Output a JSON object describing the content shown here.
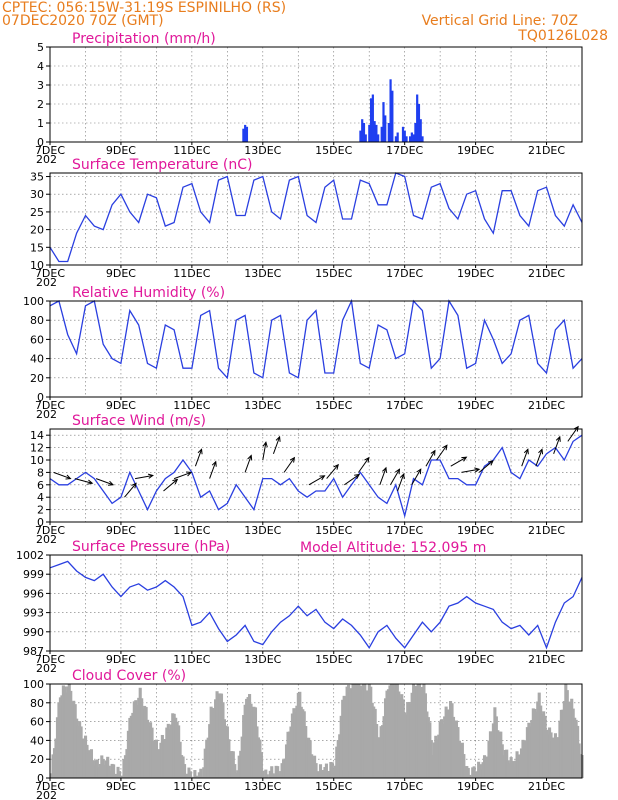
{
  "header": {
    "line1": "CPTEC:   056:15W-31:19S   ESPINILHO (RS)",
    "line2": "07DEC2020 70Z (GMT)",
    "vgrid": "Vertical Grid Line: 70Z",
    "code": "TQ0126L028",
    "model_altitude": "Model Altitude: 152.095 m"
  },
  "x_axis": {
    "start_day": 7,
    "end_day": 22,
    "tick_labels": [
      "7DEC",
      "9DEC",
      "11DEC",
      "13DEC",
      "15DEC",
      "17DEC",
      "19DEC",
      "21DEC"
    ],
    "partial_label": "202"
  },
  "colors": {
    "line": "#2a3fe0",
    "cloud": "#a9a9a9",
    "precip": "#1f3ff0",
    "title": "#e0189a",
    "header": "#e87d1e"
  },
  "chart_data": [
    {
      "type": "bar",
      "title": "Precipitation (mm/h)",
      "ylim": [
        0,
        5
      ],
      "yticks": [
        0,
        1,
        2,
        3,
        4,
        5
      ],
      "x": [
        12.45,
        12.5,
        12.55,
        15.75,
        15.8,
        15.85,
        15.9,
        16.0,
        16.05,
        16.1,
        16.15,
        16.2,
        16.25,
        16.35,
        16.4,
        16.45,
        16.55,
        16.6,
        16.65,
        16.75,
        16.8,
        16.95,
        17.0,
        17.05,
        17.15,
        17.2,
        17.25,
        17.3,
        17.35,
        17.4,
        17.45,
        17.5
      ],
      "values": [
        0.7,
        0.9,
        0.8,
        0.6,
        1.2,
        1.0,
        0.4,
        0.9,
        2.3,
        2.5,
        1.1,
        0.9,
        0.4,
        0.8,
        2.1,
        1.4,
        1.0,
        3.3,
        2.7,
        0.3,
        0.5,
        0.8,
        0.6,
        0.3,
        0.3,
        0.5,
        0.4,
        1.0,
        2.5,
        2.0,
        1.2,
        0.3
      ]
    },
    {
      "type": "line",
      "title": "Surface Temperature (nC)",
      "ylim": [
        10,
        36
      ],
      "yticks": [
        10,
        15,
        20,
        25,
        30,
        35
      ],
      "x": [
        7.0,
        7.25,
        7.5,
        7.75,
        8.0,
        8.25,
        8.5,
        8.75,
        9.0,
        9.25,
        9.5,
        9.75,
        10.0,
        10.25,
        10.5,
        10.75,
        11.0,
        11.25,
        11.5,
        11.75,
        12.0,
        12.25,
        12.5,
        12.75,
        13.0,
        13.25,
        13.5,
        13.75,
        14.0,
        14.25,
        14.5,
        14.75,
        15.0,
        15.25,
        15.5,
        15.75,
        16.0,
        16.25,
        16.5,
        16.75,
        17.0,
        17.25,
        17.5,
        17.75,
        18.0,
        18.25,
        18.5,
        18.75,
        19.0,
        19.25,
        19.5,
        19.75,
        20.0,
        20.25,
        20.5,
        20.75,
        21.0,
        21.25,
        21.5,
        21.75,
        22.0
      ],
      "values": [
        15,
        11,
        11,
        19,
        24,
        21,
        20,
        27,
        30,
        25,
        22,
        30,
        29,
        21,
        22,
        32,
        33,
        25,
        22,
        34,
        35,
        24,
        24,
        34,
        35,
        25,
        23,
        34,
        35,
        24,
        22,
        32,
        34,
        23,
        23,
        34,
        33,
        27,
        27,
        36,
        35,
        24,
        23,
        32,
        33,
        26,
        23,
        30,
        31,
        23,
        19,
        31,
        31,
        24,
        21,
        31,
        32,
        24,
        21,
        27,
        22
      ]
    },
    {
      "type": "line",
      "title": "Relative Humidity (%)",
      "ylim": [
        0,
        100
      ],
      "yticks": [
        0,
        20,
        40,
        60,
        80,
        100
      ],
      "x": [
        7.0,
        7.25,
        7.5,
        7.75,
        8.0,
        8.25,
        8.5,
        8.75,
        9.0,
        9.25,
        9.5,
        9.75,
        10.0,
        10.25,
        10.5,
        10.75,
        11.0,
        11.25,
        11.5,
        11.75,
        12.0,
        12.25,
        12.5,
        12.75,
        13.0,
        13.25,
        13.5,
        13.75,
        14.0,
        14.25,
        14.5,
        14.75,
        15.0,
        15.25,
        15.5,
        15.75,
        16.0,
        16.25,
        16.5,
        16.75,
        17.0,
        17.25,
        17.5,
        17.75,
        18.0,
        18.25,
        18.5,
        18.75,
        19.0,
        19.25,
        19.5,
        19.75,
        20.0,
        20.25,
        20.5,
        20.75,
        21.0,
        21.25,
        21.5,
        21.75,
        22.0
      ],
      "values": [
        95,
        100,
        65,
        45,
        95,
        100,
        55,
        40,
        35,
        90,
        75,
        35,
        30,
        75,
        70,
        30,
        30,
        85,
        90,
        30,
        20,
        80,
        85,
        25,
        20,
        80,
        85,
        25,
        20,
        80,
        90,
        25,
        25,
        80,
        100,
        35,
        30,
        75,
        70,
        40,
        45,
        100,
        90,
        30,
        40,
        100,
        85,
        30,
        35,
        80,
        60,
        35,
        45,
        80,
        85,
        35,
        25,
        70,
        80,
        30,
        40
      ]
    },
    {
      "type": "line",
      "title": "Surface Wind (m/s)",
      "ylim": [
        0,
        15
      ],
      "yticks": [
        0,
        2,
        4,
        6,
        8,
        10,
        12,
        14
      ],
      "x": [
        7.0,
        7.25,
        7.5,
        7.75,
        8.0,
        8.25,
        8.5,
        8.75,
        9.0,
        9.25,
        9.5,
        9.75,
        10.0,
        10.25,
        10.5,
        10.75,
        11.0,
        11.25,
        11.5,
        11.75,
        12.0,
        12.25,
        12.5,
        12.75,
        13.0,
        13.25,
        13.5,
        13.75,
        14.0,
        14.25,
        14.5,
        14.75,
        15.0,
        15.25,
        15.5,
        15.75,
        16.0,
        16.25,
        16.5,
        16.75,
        17.0,
        17.25,
        17.5,
        17.75,
        18.0,
        18.25,
        18.5,
        18.75,
        19.0,
        19.25,
        19.5,
        19.75,
        20.0,
        20.25,
        20.5,
        20.75,
        21.0,
        21.25,
        21.5,
        21.75,
        22.0
      ],
      "values": [
        7,
        6,
        6,
        7,
        8,
        7,
        5,
        3,
        4,
        8,
        5,
        2,
        5,
        7,
        8,
        10,
        8,
        4,
        5,
        2,
        3,
        6,
        4,
        2,
        7,
        7,
        6,
        7,
        5,
        4,
        5,
        5,
        7,
        4,
        6,
        8,
        6,
        4,
        3,
        6,
        1,
        7,
        6,
        10,
        10,
        7,
        7,
        6,
        6,
        9,
        10,
        12,
        8,
        7,
        10,
        9,
        11,
        12,
        10,
        13,
        14
      ],
      "arrows": [
        {
          "x": 7.1,
          "speed": 8,
          "dir": 290
        },
        {
          "x": 7.7,
          "speed": 7,
          "dir": 285
        },
        {
          "x": 8.3,
          "speed": 7,
          "dir": 290
        },
        {
          "x": 9.1,
          "speed": 4,
          "dir": 220
        },
        {
          "x": 9.4,
          "speed": 7,
          "dir": 260
        },
        {
          "x": 10.2,
          "speed": 5,
          "dir": 230
        },
        {
          "x": 10.5,
          "speed": 7,
          "dir": 250
        },
        {
          "x": 11.1,
          "speed": 9,
          "dir": 200
        },
        {
          "x": 11.5,
          "speed": 7,
          "dir": 200
        },
        {
          "x": 12.5,
          "speed": 8,
          "dir": 200
        },
        {
          "x": 13.0,
          "speed": 10,
          "dir": 190
        },
        {
          "x": 13.3,
          "speed": 11,
          "dir": 200
        },
        {
          "x": 13.6,
          "speed": 8,
          "dir": 215
        },
        {
          "x": 14.3,
          "speed": 6,
          "dir": 240
        },
        {
          "x": 14.8,
          "speed": 7,
          "dir": 220
        },
        {
          "x": 15.3,
          "speed": 6,
          "dir": 235
        },
        {
          "x": 15.7,
          "speed": 8,
          "dir": 215
        },
        {
          "x": 16.3,
          "speed": 6,
          "dir": 200
        },
        {
          "x": 16.6,
          "speed": 6,
          "dir": 210
        },
        {
          "x": 16.8,
          "speed": 5,
          "dir": 200
        },
        {
          "x": 17.2,
          "speed": 6,
          "dir": 210
        },
        {
          "x": 17.6,
          "speed": 9,
          "dir": 210
        },
        {
          "x": 17.9,
          "speed": 10,
          "dir": 215
        },
        {
          "x": 18.3,
          "speed": 9,
          "dir": 240
        },
        {
          "x": 18.6,
          "speed": 8,
          "dir": 260
        },
        {
          "x": 19.1,
          "speed": 8,
          "dir": 230
        },
        {
          "x": 20.3,
          "speed": 9,
          "dir": 200
        },
        {
          "x": 20.7,
          "speed": 9,
          "dir": 200
        },
        {
          "x": 21.2,
          "speed": 11,
          "dir": 200
        },
        {
          "x": 21.6,
          "speed": 13,
          "dir": 215
        }
      ]
    },
    {
      "type": "line",
      "title": "Surface Pressure (hPa)",
      "ylim": [
        987,
        1002
      ],
      "yticks": [
        987,
        990,
        993,
        996,
        999,
        1002
      ],
      "x": [
        7.0,
        7.25,
        7.5,
        7.75,
        8.0,
        8.25,
        8.5,
        8.75,
        9.0,
        9.25,
        9.5,
        9.75,
        10.0,
        10.25,
        10.5,
        10.75,
        11.0,
        11.25,
        11.5,
        11.75,
        12.0,
        12.25,
        12.5,
        12.75,
        13.0,
        13.25,
        13.5,
        13.75,
        14.0,
        14.25,
        14.5,
        14.75,
        15.0,
        15.25,
        15.5,
        15.75,
        16.0,
        16.25,
        16.5,
        16.75,
        17.0,
        17.25,
        17.5,
        17.75,
        18.0,
        18.25,
        18.5,
        18.75,
        19.0,
        19.25,
        19.5,
        19.75,
        20.0,
        20.25,
        20.5,
        20.75,
        21.0,
        21.25,
        21.5,
        21.75,
        22.0
      ],
      "values": [
        1000,
        1000.5,
        1001,
        999.5,
        998.5,
        998,
        999,
        997,
        995.5,
        997,
        997.5,
        996.5,
        997,
        998,
        997,
        995.5,
        991,
        991.5,
        993,
        990.5,
        988.5,
        989.5,
        991,
        988.5,
        988,
        990,
        991.5,
        992.5,
        994,
        992.5,
        993.5,
        991.5,
        990.5,
        992,
        991,
        989.5,
        987.5,
        990,
        991,
        989,
        987.5,
        989.5,
        991.5,
        990,
        991.5,
        994,
        994.5,
        995.5,
        994.5,
        994,
        993.5,
        991.5,
        990.5,
        991,
        989.5,
        991,
        987.5,
        991.5,
        994.5,
        995.5,
        998.5
      ]
    },
    {
      "type": "bar",
      "title": "Cloud Cover (%)",
      "ylim": [
        0,
        100
      ],
      "yticks": [
        0,
        20,
        40,
        60,
        80,
        100
      ],
      "x": [
        7.0,
        7.25,
        7.5,
        7.75,
        8.0,
        8.25,
        8.5,
        8.75,
        9.0,
        9.25,
        9.5,
        9.75,
        10.0,
        10.25,
        10.5,
        10.75,
        11.0,
        11.25,
        11.5,
        11.75,
        12.0,
        12.25,
        12.5,
        12.75,
        13.0,
        13.25,
        13.5,
        13.75,
        14.0,
        14.25,
        14.5,
        14.75,
        15.0,
        15.25,
        15.5,
        15.75,
        16.0,
        16.25,
        16.5,
        16.75,
        17.0,
        17.25,
        17.5,
        17.75,
        18.0,
        18.25,
        18.5,
        18.75,
        19.0,
        19.25,
        19.5,
        19.75,
        20.0,
        20.25,
        20.5,
        20.75,
        21.0,
        21.25,
        21.5,
        21.75,
        22.0
      ],
      "values": [
        5,
        90,
        100,
        60,
        35,
        15,
        20,
        10,
        3,
        70,
        90,
        60,
        30,
        50,
        70,
        10,
        2,
        5,
        70,
        95,
        40,
        5,
        90,
        70,
        2,
        8,
        10,
        60,
        90,
        40,
        8,
        10,
        15,
        90,
        100,
        100,
        95,
        40,
        100,
        100,
        70,
        100,
        100,
        30,
        60,
        80,
        45,
        5,
        10,
        20,
        70,
        30,
        15,
        30,
        60,
        85,
        50,
        40,
        95,
        70,
        10
      ]
    }
  ]
}
